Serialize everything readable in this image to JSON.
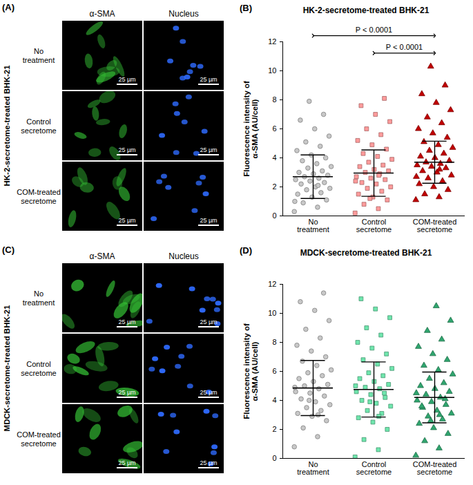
{
  "panels": [
    {
      "label": "(A)",
      "title": "HK-2-secretome-treated BHK-21",
      "columns": [
        "α-SMA",
        "Nucleus"
      ],
      "rows": [
        "No treatment",
        "Control secretome",
        "COM-treated secretome"
      ],
      "scale_bar": "25 µm"
    },
    {
      "label": "(C)",
      "title": "MDCK-secretome-treated BHK-21",
      "columns": [
        "α-SMA",
        "Nucleus"
      ],
      "rows": [
        "No treatment",
        "Control secretome",
        "COM-treated secretome"
      ],
      "scale_bar": "25 µm"
    }
  ],
  "chart_data": [
    {
      "type": "scatter",
      "label": "(B)",
      "title": "HK-2-secretome-treated BHK-21",
      "y_label": "Fluorescence intensity of α-SMA (AU/cell)",
      "categories": [
        "No treatment",
        "Control secretome",
        "COM-treated secretome"
      ],
      "groups": [
        {
          "color": "#c8c8c8",
          "marker": "circle",
          "mean": 2.7,
          "sd": 1.5,
          "values": [
            0.3,
            0.6,
            0.9,
            1.1,
            1.3,
            1.5,
            1.6,
            1.8,
            1.9,
            2.0,
            2.2,
            2.3,
            2.4,
            2.5,
            2.6,
            2.7,
            2.8,
            2.9,
            3.0,
            3.1,
            3.3,
            3.4,
            3.6,
            3.8,
            4.0,
            4.2,
            4.5,
            4.8,
            5.1,
            5.5,
            6.0,
            6.6,
            7.0,
            7.9,
            1.0,
            2.1
          ]
        },
        {
          "color": "#ff9b9b",
          "marker": "square",
          "mean": 2.95,
          "sd": 1.6,
          "values": [
            0.2,
            0.5,
            0.8,
            1.1,
            1.3,
            1.5,
            1.7,
            1.9,
            2.0,
            2.2,
            2.3,
            2.5,
            2.6,
            2.7,
            2.9,
            3.0,
            3.1,
            3.2,
            3.4,
            3.5,
            3.7,
            3.9,
            4.1,
            4.3,
            4.6,
            4.9,
            5.2,
            5.6,
            6.0,
            6.5,
            7.0,
            7.6,
            8.1,
            1.2,
            2.4,
            2.8
          ]
        },
        {
          "color": "#c00000",
          "marker": "triangle",
          "mean": 3.7,
          "sd": 1.45,
          "values": [
            1.1,
            1.3,
            1.5,
            1.8,
            2.0,
            2.2,
            2.4,
            2.6,
            2.8,
            3.0,
            3.1,
            3.3,
            3.4,
            3.5,
            3.6,
            3.7,
            3.8,
            4.0,
            4.1,
            4.3,
            4.5,
            4.7,
            4.9,
            5.1,
            5.4,
            5.7,
            6.0,
            6.4,
            6.8,
            7.3,
            7.8,
            8.4,
            9.0,
            10.3,
            2.7,
            3.2
          ]
        }
      ],
      "ylim": [
        0,
        12
      ],
      "yticks": [
        0,
        2,
        4,
        6,
        8,
        10,
        12
      ],
      "annotations": [
        {
          "text": "P < 0.0001",
          "from": "No treatment",
          "to": "COM-treated secretome"
        },
        {
          "text": "P < 0.0001",
          "from": "Control secretome",
          "to": "COM-treated secretome"
        }
      ]
    },
    {
      "type": "scatter",
      "label": "(D)",
      "title": "MDCK-secretome-treated BHK-21",
      "y_label": "Fluorescence intensity of α-SMA (AU/cell)",
      "categories": [
        "No treatment",
        "Control secretome",
        "COM-treated secretome"
      ],
      "groups": [
        {
          "color": "#c8c8c8",
          "marker": "circle",
          "mean": 4.85,
          "sd": 1.9,
          "values": [
            0.8,
            1.5,
            2.1,
            2.6,
            2.9,
            3.1,
            3.3,
            3.5,
            3.7,
            3.9,
            4.1,
            4.3,
            4.5,
            4.6,
            4.8,
            5.0,
            5.1,
            5.3,
            5.5,
            5.7,
            5.9,
            6.1,
            6.4,
            6.7,
            7.0,
            7.4,
            7.8,
            8.3,
            8.9,
            9.5,
            10.2,
            10.8,
            11.4,
            4.0,
            4.9,
            3.0
          ]
        },
        {
          "color": "#6fe6ad",
          "marker": "square",
          "mean": 4.75,
          "sd": 1.9,
          "values": [
            0.1,
            0.6,
            1.3,
            2.0,
            2.5,
            2.8,
            3.1,
            3.3,
            3.6,
            3.8,
            4.0,
            4.2,
            4.4,
            4.6,
            4.8,
            4.9,
            5.1,
            5.3,
            5.5,
            5.7,
            5.9,
            6.2,
            6.5,
            6.8,
            7.2,
            7.6,
            8.0,
            8.5,
            9.0,
            9.7,
            10.3,
            11.0,
            4.5,
            3.9,
            5.0,
            2.9
          ]
        },
        {
          "color": "#2fa56e",
          "marker": "triangle",
          "mean": 4.2,
          "sd": 1.75,
          "values": [
            0.2,
            0.7,
            1.2,
            1.7,
            2.1,
            2.4,
            2.7,
            2.9,
            3.1,
            3.3,
            3.5,
            3.7,
            3.9,
            4.0,
            4.2,
            4.4,
            4.6,
            4.8,
            5.0,
            5.2,
            5.5,
            5.8,
            6.1,
            6.4,
            6.8,
            7.2,
            7.7,
            8.2,
            8.8,
            9.5,
            10.5,
            3.6,
            4.1,
            2.6,
            4.5,
            3.0
          ]
        }
      ],
      "ylim": [
        0,
        12
      ],
      "yticks": [
        0,
        2,
        4,
        6,
        8,
        10,
        12
      ]
    }
  ]
}
